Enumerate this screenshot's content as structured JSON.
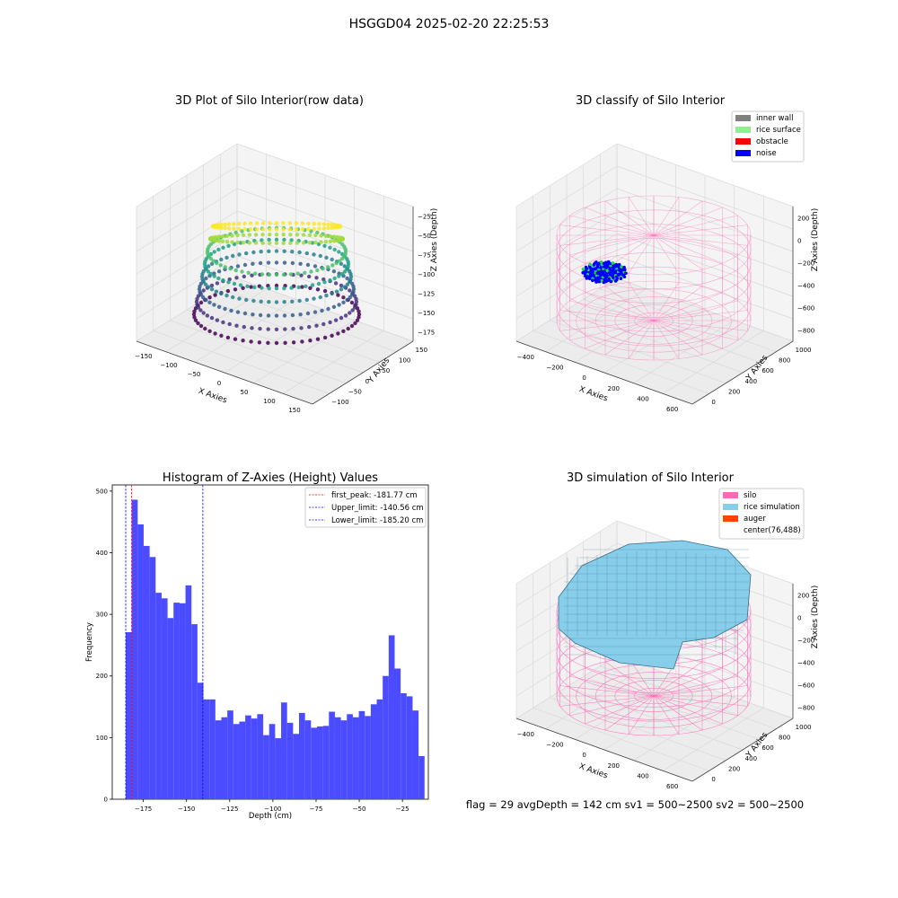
{
  "figure": {
    "suptitle": "HSGGD04 2025-02-20 22:25:53",
    "status_line": "flag = 29  avgDepth = 142 cm  sv1 = 500~2500  sv2 = 500~2500"
  },
  "colors": {
    "bars": "#4b4bff",
    "first_peak": "#ff0000",
    "limits": "#0000ff",
    "silo": "#ff69b4",
    "rice_simulation": "#87ceeb",
    "auger": "#ff4500",
    "inner_wall": "#808080",
    "rice_surface": "#90ee90",
    "obstacle": "#ff0000",
    "noise": "#0000ff"
  },
  "chart_data": [
    {
      "type": "scatter3d",
      "title": "3D Plot of Silo Interior(row data)",
      "xlabel": "X Axies",
      "ylabel": "Y Axies",
      "zlabel": "Z Axies (Depth)",
      "xticks": [
        "−150",
        "−100",
        "−50",
        "0",
        "50",
        "100",
        "150"
      ],
      "yticks": [
        "−100",
        "−50",
        "0",
        "50",
        "100",
        "150"
      ],
      "zticks": [
        "−25",
        "−50",
        "−75",
        "−100",
        "−125",
        "−150",
        "−175"
      ],
      "colormap": "viridis",
      "grid": true
    },
    {
      "type": "scatter3d",
      "title": "3D classify of Silo Interior",
      "xlabel": "X Axies",
      "ylabel": "Y Axies",
      "zlabel": "Z Axies (Depth)",
      "xticks": [
        "−400",
        "−200",
        "0",
        "200",
        "400",
        "600"
      ],
      "yticks": [
        "0",
        "200",
        "400",
        "600",
        "800",
        "1000"
      ],
      "zticks": [
        "200",
        "0",
        "−200",
        "−400",
        "−600",
        "−800"
      ],
      "legend_position": "top-right",
      "legend": [
        {
          "label": "inner wall",
          "color": "#808080"
        },
        {
          "label": "rice surface",
          "color": "#90ee90"
        },
        {
          "label": "obstacle",
          "color": "#ff0000"
        },
        {
          "label": "noise",
          "color": "#0000ff"
        }
      ],
      "grid": true
    },
    {
      "type": "bar",
      "title": "Histogram of Z-Axies (Height) Values",
      "xlabel": "Depth (cm)",
      "ylabel": "Frequency",
      "xlim": [
        -193,
        -10
      ],
      "ylim": [
        0,
        510
      ],
      "xticks": [
        -175,
        -150,
        -125,
        -100,
        -75,
        -50,
        -25
      ],
      "xtick_labels": [
        "−175",
        "−150",
        "−125",
        "−100",
        "−75",
        "−50",
        "−25"
      ],
      "yticks": [
        0,
        100,
        200,
        300,
        400,
        500
      ],
      "bin_start": -185.2,
      "bin_width": 3.46,
      "values": [
        271,
        486,
        446,
        411,
        393,
        335,
        326,
        294,
        319,
        318,
        347,
        284,
        189,
        162,
        162,
        128,
        133,
        144,
        122,
        126,
        136,
        131,
        138,
        104,
        122,
        99,
        157,
        124,
        106,
        140,
        128,
        116,
        118,
        119,
        142,
        133,
        128,
        138,
        133,
        143,
        135,
        154,
        162,
        200,
        266,
        212,
        172,
        167,
        144,
        70
      ],
      "vlines": [
        {
          "x": -181.77,
          "label": "first_peak: -181.77 cm",
          "color": "#ff0000"
        },
        {
          "x": -140.56,
          "label": "Upper_limit: -140.56 cm",
          "color": "#0000ff"
        },
        {
          "x": -185.2,
          "label": "Lower_limit: -185.20 cm",
          "color": "#0000ff"
        }
      ],
      "legend_position": "top-right"
    },
    {
      "type": "surface3d",
      "title": "3D simulation of Silo Interior",
      "xlabel": "X Axies",
      "ylabel": "Y Axies",
      "zlabel": "Z Axies (Depth)",
      "xticks": [
        "−400",
        "−200",
        "0",
        "200",
        "400",
        "600"
      ],
      "yticks": [
        "0",
        "200",
        "400",
        "600",
        "800",
        "1000"
      ],
      "zticks": [
        "200",
        "0",
        "−200",
        "−400",
        "−600",
        "−800"
      ],
      "legend_position": "top-right",
      "legend": [
        {
          "label": "silo",
          "color": "#ff69b4"
        },
        {
          "label": "rice simulation",
          "color": "#87ceeb"
        },
        {
          "label": "auger",
          "color": "#ff4500"
        },
        {
          "label": "center(76,488)",
          "color": ""
        }
      ],
      "grid": true
    }
  ]
}
